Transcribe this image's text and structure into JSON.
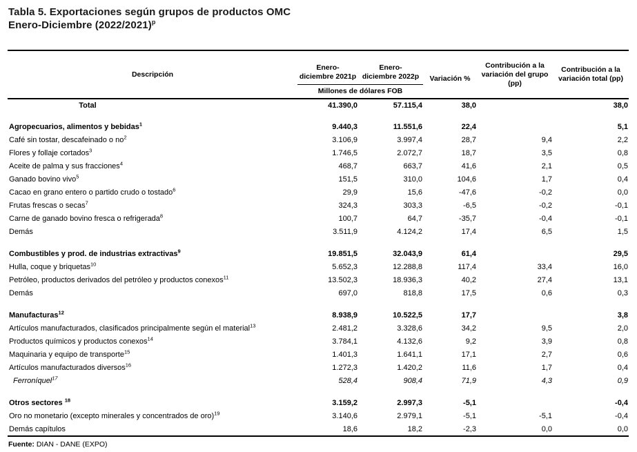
{
  "colors": {
    "background": "#ffffff",
    "text": "#000000",
    "title": "#1a1a1a",
    "border": "#000000"
  },
  "page_title": {
    "line1": "Tabla 5. Exportaciones según grupos de productos OMC",
    "line2": "Enero-Diciembre (2022/2021)",
    "line2_sup": "p"
  },
  "table": {
    "header": {
      "col_descripcion": "Descripción",
      "col_2021_line1": "Enero-",
      "col_2021_line2": "diciembre 2021p",
      "col_2022_line1": "Enero-",
      "col_2022_line2": "diciembre 2022p",
      "subheader_units": "Millones de dólares FOB",
      "col_variacion": "Variación %",
      "col_contrib_grupo": "Contribución a la variación del grupo (pp)",
      "col_contrib_total": "Contribución a la variación total (pp)"
    },
    "rows": [
      {
        "label": "Total",
        "sup": "",
        "style": "total",
        "gap_before": false,
        "v2021": "41.390,0",
        "v2022": "57.115,4",
        "variacion": "38,0",
        "contrib_grupo": "",
        "contrib_total": "38,0"
      },
      {
        "label": "Agropecuarios, alimentos y bebidas",
        "sup": "1",
        "style": "group",
        "gap_before": true,
        "v2021": "9.440,3",
        "v2022": "11.551,6",
        "variacion": "22,4",
        "contrib_grupo": "",
        "contrib_total": "5,1"
      },
      {
        "label": "Café sin tostar, descafeinado o no",
        "sup": "2",
        "style": "item",
        "gap_before": false,
        "v2021": "3.106,9",
        "v2022": "3.997,4",
        "variacion": "28,7",
        "contrib_grupo": "9,4",
        "contrib_total": "2,2"
      },
      {
        "label": "Flores y follaje cortados",
        "sup": "3",
        "style": "item",
        "gap_before": false,
        "v2021": "1.746,5",
        "v2022": "2.072,7",
        "variacion": "18,7",
        "contrib_grupo": "3,5",
        "contrib_total": "0,8"
      },
      {
        "label": "Aceite de palma y sus fracciones",
        "sup": "4",
        "style": "item",
        "gap_before": false,
        "v2021": "468,7",
        "v2022": "663,7",
        "variacion": "41,6",
        "contrib_grupo": "2,1",
        "contrib_total": "0,5"
      },
      {
        "label": "Ganado bovino vivo",
        "sup": "5",
        "style": "item",
        "gap_before": false,
        "v2021": "151,5",
        "v2022": "310,0",
        "variacion": "104,6",
        "contrib_grupo": "1,7",
        "contrib_total": "0,4"
      },
      {
        "label": "Cacao en grano entero o partido crudo o tostado",
        "sup": "6",
        "style": "item",
        "gap_before": false,
        "v2021": "29,9",
        "v2022": "15,6",
        "variacion": "-47,6",
        "contrib_grupo": "-0,2",
        "contrib_total": "0,0"
      },
      {
        "label": "Frutas frescas o secas",
        "sup": "7",
        "style": "item",
        "gap_before": false,
        "v2021": "324,3",
        "v2022": "303,3",
        "variacion": "-6,5",
        "contrib_grupo": "-0,2",
        "contrib_total": "-0,1"
      },
      {
        "label": "Carne de ganado bovino fresca o refrigerada",
        "sup": "8",
        "style": "item",
        "gap_before": false,
        "v2021": "100,7",
        "v2022": "64,7",
        "variacion": "-35,7",
        "contrib_grupo": "-0,4",
        "contrib_total": "-0,1"
      },
      {
        "label": "Demás",
        "sup": "",
        "style": "item",
        "gap_before": false,
        "v2021": "3.511,9",
        "v2022": "4.124,2",
        "variacion": "17,4",
        "contrib_grupo": "6,5",
        "contrib_total": "1,5"
      },
      {
        "label": "Combustibles y prod. de industrias extractivas",
        "sup": "9",
        "style": "group",
        "gap_before": true,
        "v2021": "19.851,5",
        "v2022": "32.043,9",
        "variacion": "61,4",
        "contrib_grupo": "",
        "contrib_total": "29,5"
      },
      {
        "label": "Hulla, coque y briquetas",
        "sup": "10",
        "style": "item",
        "gap_before": false,
        "v2021": "5.652,3",
        "v2022": "12.288,8",
        "variacion": "117,4",
        "contrib_grupo": "33,4",
        "contrib_total": "16,0"
      },
      {
        "label": "Petróleo, productos derivados del petróleo y productos conexos",
        "sup": "11",
        "style": "item",
        "gap_before": false,
        "v2021": "13.502,3",
        "v2022": "18.936,3",
        "variacion": "40,2",
        "contrib_grupo": "27,4",
        "contrib_total": "13,1"
      },
      {
        "label": "Demás",
        "sup": "",
        "style": "item",
        "gap_before": false,
        "v2021": "697,0",
        "v2022": "818,8",
        "variacion": "17,5",
        "contrib_grupo": "0,6",
        "contrib_total": "0,3"
      },
      {
        "label": "Manufacturas",
        "sup": "12",
        "style": "group",
        "gap_before": true,
        "v2021": "8.938,9",
        "v2022": "10.522,5",
        "variacion": "17,7",
        "contrib_grupo": "",
        "contrib_total": "3,8"
      },
      {
        "label": "Artículos manufacturados, clasificados principalmente según el material",
        "sup": "13",
        "style": "item",
        "gap_before": false,
        "v2021": "2.481,2",
        "v2022": "3.328,6",
        "variacion": "34,2",
        "contrib_grupo": "9,5",
        "contrib_total": "2,0"
      },
      {
        "label": "Productos químicos y productos conexos",
        "sup": "14",
        "style": "item",
        "gap_before": false,
        "v2021": "3.784,1",
        "v2022": "4.132,6",
        "variacion": "9,2",
        "contrib_grupo": "3,9",
        "contrib_total": "0,8"
      },
      {
        "label": "Maquinaria y equipo de transporte",
        "sup": "15",
        "style": "item",
        "gap_before": false,
        "v2021": "1.401,3",
        "v2022": "1.641,1",
        "variacion": "17,1",
        "contrib_grupo": "2,7",
        "contrib_total": "0,6"
      },
      {
        "label": "Artículos manufacturados diversos",
        "sup": "16",
        "style": "item",
        "gap_before": false,
        "v2021": "1.272,3",
        "v2022": "1.420,2",
        "variacion": "11,6",
        "contrib_grupo": "1,7",
        "contrib_total": "0,4"
      },
      {
        "label": "Ferroníquel",
        "sup": "17",
        "style": "item-italic",
        "gap_before": false,
        "v2021": "528,4",
        "v2022": "908,4",
        "variacion": "71,9",
        "contrib_grupo": "4,3",
        "contrib_total": "0,9"
      },
      {
        "label": "Otros sectores ",
        "sup": "18",
        "style": "group",
        "gap_before": true,
        "v2021": "3.159,2",
        "v2022": "2.997,3",
        "variacion": "-5,1",
        "contrib_grupo": "",
        "contrib_total": "-0,4"
      },
      {
        "label": "Oro no monetario (excepto minerales y concentrados de oro)",
        "sup": "19",
        "style": "item",
        "gap_before": false,
        "v2021": "3.140,6",
        "v2022": "2.979,1",
        "variacion": "-5,1",
        "contrib_grupo": "-5,1",
        "contrib_total": "-0,4"
      },
      {
        "label": "Demás capítulos",
        "sup": "",
        "style": "item",
        "gap_before": false,
        "v2021": "18,6",
        "v2022": "18,2",
        "variacion": "-2,3",
        "contrib_grupo": "0,0",
        "contrib_total": "0,0"
      }
    ],
    "footer": {
      "label": "Fuente:",
      "value": "DIAN - DANE (EXPO)"
    }
  }
}
